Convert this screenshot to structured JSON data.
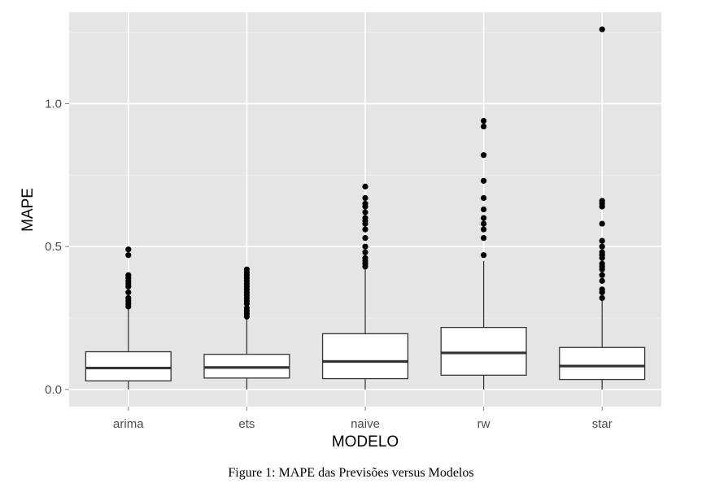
{
  "chart_data": {
    "type": "boxplot",
    "xlabel": "MODELO",
    "ylabel": "MAPE",
    "categories": [
      "arima",
      "ets",
      "naive",
      "rw",
      "star"
    ],
    "ylim": [
      -0.06,
      1.32
    ],
    "yticks": [
      0.0,
      0.5,
      1.0
    ],
    "ytick_labels": [
      "0.0",
      "0.5",
      "1.0"
    ],
    "grid": true,
    "legend": "none",
    "boxes": [
      {
        "name": "arima",
        "min": 0.0,
        "q1": 0.03,
        "median": 0.075,
        "q3": 0.132,
        "max": 0.282,
        "outliers": [
          0.29,
          0.3,
          0.31,
          0.32,
          0.34,
          0.36,
          0.37,
          0.38,
          0.39,
          0.4,
          0.47,
          0.49
        ]
      },
      {
        "name": "ets",
        "min": 0.0,
        "q1": 0.04,
        "median": 0.077,
        "q3": 0.123,
        "max": 0.25,
        "outliers": [
          0.255,
          0.265,
          0.275,
          0.285,
          0.3,
          0.31,
          0.32,
          0.33,
          0.34,
          0.35,
          0.36,
          0.37,
          0.38,
          0.39,
          0.4,
          0.41,
          0.42
        ]
      },
      {
        "name": "naive",
        "min": 0.0,
        "q1": 0.038,
        "median": 0.098,
        "q3": 0.195,
        "max": 0.43,
        "outliers": [
          0.43,
          0.44,
          0.45,
          0.46,
          0.48,
          0.5,
          0.53,
          0.56,
          0.58,
          0.59,
          0.6,
          0.62,
          0.64,
          0.65,
          0.67,
          0.71
        ]
      },
      {
        "name": "rw",
        "min": 0.0,
        "q1": 0.05,
        "median": 0.128,
        "q3": 0.217,
        "max": 0.45,
        "outliers": [
          0.47,
          0.53,
          0.56,
          0.58,
          0.6,
          0.63,
          0.67,
          0.73,
          0.82,
          0.92,
          0.94
        ]
      },
      {
        "name": "star",
        "min": 0.0,
        "q1": 0.035,
        "median": 0.082,
        "q3": 0.147,
        "max": 0.31,
        "outliers": [
          0.32,
          0.34,
          0.35,
          0.38,
          0.4,
          0.42,
          0.43,
          0.44,
          0.46,
          0.47,
          0.48,
          0.5,
          0.52,
          0.58,
          0.64,
          0.65,
          0.66,
          1.26
        ]
      }
    ],
    "colors": {
      "panel": "#e5e5e5",
      "grid": "#ffffff",
      "box_fill": "#ffffff",
      "box_line": "#333333",
      "point": "#000000"
    }
  },
  "caption": "Figure 1: MAPE das Previsões versus Modelos"
}
